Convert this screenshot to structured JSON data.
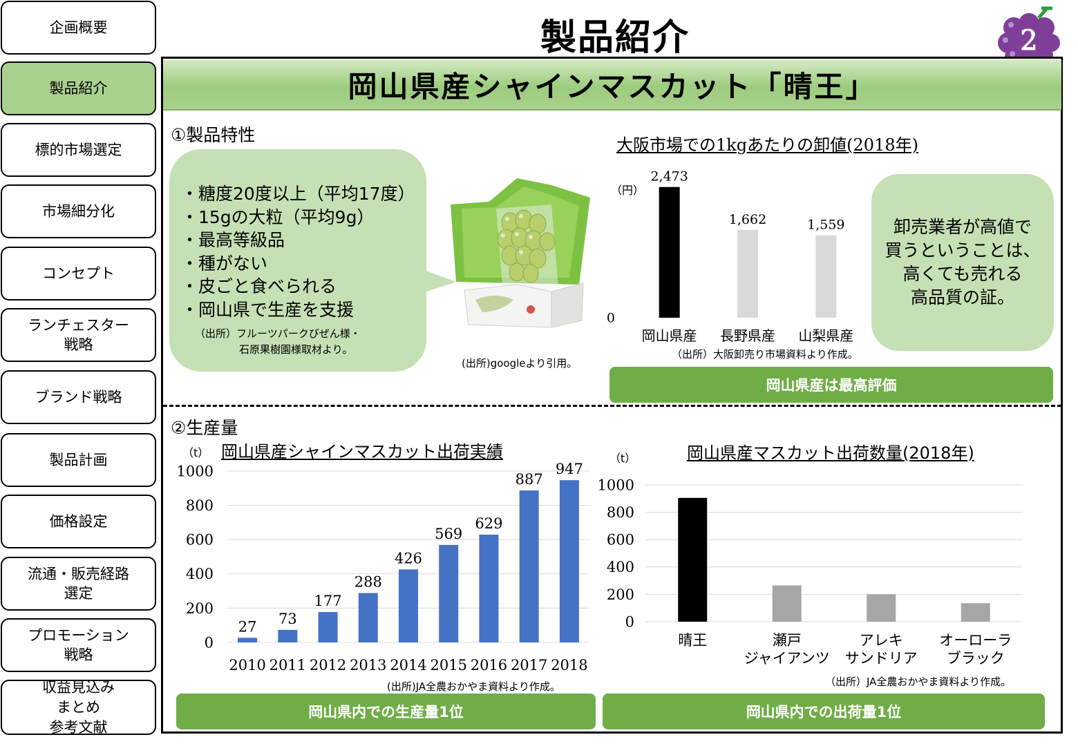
{
  "sidebar": {
    "items": [
      {
        "label": "企画概要",
        "active": false
      },
      {
        "label": "製品紹介",
        "active": true
      },
      {
        "label": "標的市場選定",
        "active": false
      },
      {
        "label": "市場細分化",
        "active": false
      },
      {
        "label": "コンセプト",
        "active": false
      },
      {
        "label": "ランチェスター\n戦略",
        "active": false
      },
      {
        "label": "ブランド戦略",
        "active": false
      },
      {
        "label": "製品計画",
        "active": false
      },
      {
        "label": "価格設定",
        "active": false
      },
      {
        "label": "流通・販売経路\n選定",
        "active": false
      },
      {
        "label": "プロモーション\n戦略",
        "active": false
      },
      {
        "label": "収益見込み\nまとめ\n参考文献",
        "active": false
      }
    ]
  },
  "header": {
    "title": "製品紹介",
    "page_number": "2"
  },
  "banner": {
    "title": "岡山県産シャインマスカット「晴王」"
  },
  "section1": {
    "label": "①製品特性",
    "features": [
      "・糖度20度以上（平均17度）",
      "・15gの大粒（平均9g）",
      "・最高等級品",
      "・種がない",
      "・皮ごと食べられる",
      "・岡山県で生産を支援"
    ],
    "features_source_line1": "（出所）フルーツパークびぜん様・",
    "features_source_line2": "石原果樹園様取材より。",
    "photo_source": "(出所)googleより引用。"
  },
  "price_chart": {
    "title": "大阪市場での1kgあたりの卸値(2018年)",
    "unit": "（円）",
    "source": "（出所）大阪卸売り市場資料より作成。",
    "callout": "卸売業者が高値で\n買うということは、\n高くても売れる\n高品質の証。",
    "conclusion": "岡山県産は最高評価"
  },
  "section2": {
    "label": "②生産量"
  },
  "shipment_chart": {
    "title": "岡山県産シャインマスカット出荷実績",
    "unit": "（t）",
    "source": "(出所)JA全農おかやま資料より作成。",
    "conclusion": "岡山県内での生産量1位"
  },
  "variety_chart": {
    "title": "岡山県産マスカット出荷数量(2018年)",
    "unit": "（t）",
    "source": "（出所）JA全農おかやま資料より作成。",
    "conclusion": "岡山県内での出荷量1位"
  },
  "colors": {
    "accent_green": "#70ad47",
    "light_green": "#c5e0b4",
    "bar_blue": "#4472c4",
    "bar_black": "#000000",
    "bar_gray": "#a6a6a6",
    "bar_lightgray": "#d9d9d9"
  },
  "chart_data": [
    {
      "type": "bar",
      "title": "大阪市場での1kgあたりの卸値(2018年)",
      "ylabel": "（円）",
      "categories": [
        "岡山県産",
        "長野県産",
        "山梨県産"
      ],
      "values": [
        2473,
        1662,
        1559
      ],
      "value_labels": [
        "2,473",
        "1,662",
        "1,559"
      ],
      "yticks": [
        "0"
      ],
      "ylim": [
        0,
        2600
      ],
      "grid": false,
      "bar_colors": [
        "#000000",
        "#d9d9d9",
        "#d9d9d9"
      ]
    },
    {
      "type": "bar",
      "title": "岡山県産シャインマスカット出荷実績",
      "ylabel": "（t）",
      "categories": [
        "2010",
        "2011",
        "2012",
        "2013",
        "2014",
        "2015",
        "2016",
        "2017",
        "2018"
      ],
      "values": [
        27,
        73,
        177,
        288,
        426,
        569,
        629,
        887,
        947
      ],
      "value_labels": [
        "27",
        "73",
        "177",
        "288",
        "426",
        "569",
        "629",
        "887",
        "947"
      ],
      "yticks": [
        "0",
        "200",
        "400",
        "600",
        "800",
        "1000"
      ],
      "ylim": [
        0,
        1000
      ],
      "grid": true,
      "bar_colors": [
        "#4472c4"
      ]
    },
    {
      "type": "bar",
      "title": "岡山県産マスカット出荷数量(2018年)",
      "ylabel": "（t）",
      "categories": [
        "晴王",
        "瀬戸\nジャイアンツ",
        "アレキ\nサンドリア",
        "オーローラ\nブラック"
      ],
      "values": [
        905,
        265,
        200,
        135
      ],
      "yticks": [
        "0",
        "200",
        "400",
        "600",
        "800",
        "1000"
      ],
      "ylim": [
        0,
        1000
      ],
      "grid": true,
      "bar_colors": [
        "#000000",
        "#a6a6a6",
        "#a6a6a6",
        "#a6a6a6"
      ]
    }
  ]
}
